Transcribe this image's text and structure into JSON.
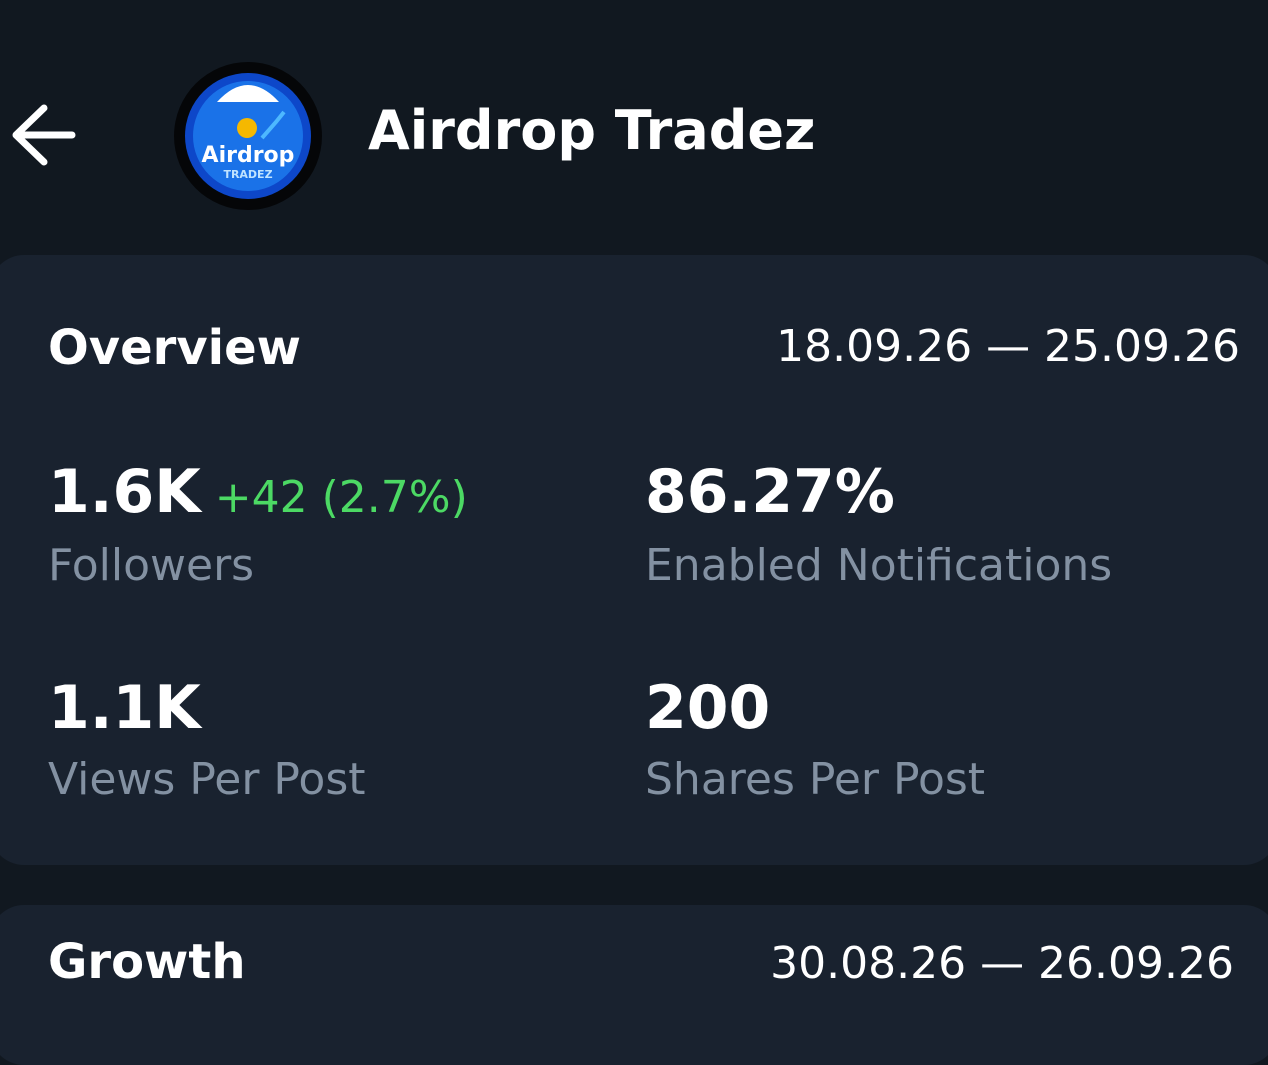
{
  "header": {
    "title": "Airdrop Tradez",
    "logo": {
      "name": "Airdrop",
      "subtitle": "TRADEZ"
    }
  },
  "overview": {
    "title": "Overview",
    "date_range": "18.09.26 — 25.09.26",
    "stats": [
      {
        "value": "1.6K",
        "change": "+42 (2.7%)",
        "label": "Followers"
      },
      {
        "value": "86.27%",
        "label": "Enabled Notifications"
      },
      {
        "value": "1.1K",
        "label": "Views Per Post"
      },
      {
        "value": "200",
        "label": "Shares Per Post"
      }
    ]
  },
  "growth": {
    "title": "Growth",
    "date_range": "30.08.26 — 26.09.26"
  }
}
